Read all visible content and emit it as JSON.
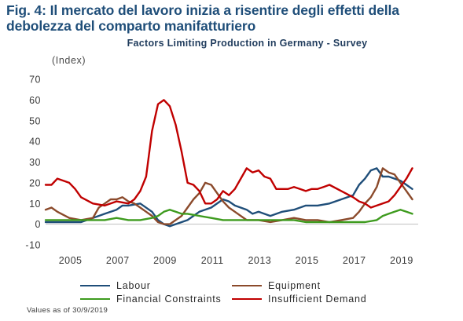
{
  "figure": {
    "title": "Fig. 4: Il mercato del lavoro inizia a risentire degli effetti della debolezza del comparto manifatturiero",
    "footnote": "Values as of 30/9/2019"
  },
  "chart_data": {
    "type": "line",
    "title": "Factors Limiting Production in Germany - Survey",
    "ylabel": "(Index)",
    "xlabel": "",
    "ylim": [
      -10,
      70
    ],
    "yticks": [
      -10,
      0,
      10,
      20,
      30,
      40,
      50,
      60,
      70
    ],
    "xlim": [
      2004.0,
      2019.75
    ],
    "xticks": [
      2005,
      2007,
      2009,
      2011,
      2013,
      2015,
      2017,
      2019
    ],
    "xtick_labels": [
      "2005",
      "2007",
      "2009",
      "2011",
      "2013",
      "2015",
      "2017",
      "2019"
    ],
    "grid": false,
    "legend_position": "bottom",
    "series": [
      {
        "name": "Labour",
        "color": "#1f4e79",
        "points": [
          [
            2004.0,
            1
          ],
          [
            2004.5,
            1
          ],
          [
            2005.0,
            1
          ],
          [
            2005.5,
            1
          ],
          [
            2006.0,
            3
          ],
          [
            2006.5,
            5
          ],
          [
            2007.0,
            7
          ],
          [
            2007.25,
            9
          ],
          [
            2007.5,
            9
          ],
          [
            2008.0,
            10
          ],
          [
            2008.5,
            6
          ],
          [
            2008.75,
            2
          ],
          [
            2009.0,
            0
          ],
          [
            2009.25,
            -1
          ],
          [
            2009.5,
            0
          ],
          [
            2010.0,
            2
          ],
          [
            2010.5,
            6
          ],
          [
            2011.0,
            8
          ],
          [
            2011.5,
            12
          ],
          [
            2011.75,
            11
          ],
          [
            2012.0,
            9
          ],
          [
            2012.5,
            7
          ],
          [
            2012.75,
            5
          ],
          [
            2013.0,
            6
          ],
          [
            2013.5,
            4
          ],
          [
            2014.0,
            6
          ],
          [
            2014.5,
            7
          ],
          [
            2015.0,
            9
          ],
          [
            2015.5,
            9
          ],
          [
            2016.0,
            10
          ],
          [
            2016.5,
            12
          ],
          [
            2017.0,
            14
          ],
          [
            2017.25,
            19
          ],
          [
            2017.5,
            22
          ],
          [
            2017.75,
            26
          ],
          [
            2018.0,
            27
          ],
          [
            2018.25,
            23
          ],
          [
            2018.5,
            23
          ],
          [
            2018.75,
            22
          ],
          [
            2019.0,
            21
          ],
          [
            2019.25,
            19
          ],
          [
            2019.5,
            17
          ]
        ]
      },
      {
        "name": "Equipment",
        "color": "#8b4a2b",
        "points": [
          [
            2004.0,
            7
          ],
          [
            2004.25,
            8
          ],
          [
            2004.5,
            6
          ],
          [
            2005.0,
            3
          ],
          [
            2005.5,
            2
          ],
          [
            2006.0,
            3
          ],
          [
            2006.25,
            8
          ],
          [
            2006.5,
            10
          ],
          [
            2006.75,
            12
          ],
          [
            2007.0,
            12
          ],
          [
            2007.25,
            13
          ],
          [
            2007.5,
            11
          ],
          [
            2007.75,
            10
          ],
          [
            2008.0,
            8
          ],
          [
            2008.25,
            6
          ],
          [
            2008.5,
            4
          ],
          [
            2008.75,
            1
          ],
          [
            2009.0,
            0
          ],
          [
            2009.25,
            0
          ],
          [
            2009.5,
            2
          ],
          [
            2009.75,
            4
          ],
          [
            2010.0,
            8
          ],
          [
            2010.25,
            12
          ],
          [
            2010.5,
            15
          ],
          [
            2010.75,
            20
          ],
          [
            2011.0,
            19
          ],
          [
            2011.25,
            15
          ],
          [
            2011.5,
            11
          ],
          [
            2011.75,
            8
          ],
          [
            2012.0,
            6
          ],
          [
            2012.5,
            2
          ],
          [
            2013.0,
            2
          ],
          [
            2013.5,
            1
          ],
          [
            2014.0,
            2
          ],
          [
            2014.5,
            3
          ],
          [
            2015.0,
            2
          ],
          [
            2015.5,
            2
          ],
          [
            2016.0,
            1
          ],
          [
            2016.5,
            2
          ],
          [
            2017.0,
            3
          ],
          [
            2017.25,
            6
          ],
          [
            2017.5,
            10
          ],
          [
            2017.75,
            13
          ],
          [
            2018.0,
            18
          ],
          [
            2018.25,
            27
          ],
          [
            2018.5,
            25
          ],
          [
            2018.75,
            24
          ],
          [
            2019.0,
            20
          ],
          [
            2019.25,
            16
          ],
          [
            2019.5,
            12
          ]
        ]
      },
      {
        "name": "Financial Constraints",
        "color": "#3e9b1e",
        "points": [
          [
            2004.0,
            2
          ],
          [
            2004.5,
            2
          ],
          [
            2005.0,
            2
          ],
          [
            2005.5,
            2
          ],
          [
            2006.0,
            2
          ],
          [
            2006.5,
            2
          ],
          [
            2007.0,
            3
          ],
          [
            2007.5,
            2
          ],
          [
            2008.0,
            2
          ],
          [
            2008.5,
            3
          ],
          [
            2008.75,
            4
          ],
          [
            2009.0,
            6
          ],
          [
            2009.25,
            7
          ],
          [
            2009.5,
            6
          ],
          [
            2009.75,
            5
          ],
          [
            2010.0,
            5
          ],
          [
            2010.5,
            4
          ],
          [
            2011.0,
            3
          ],
          [
            2011.5,
            2
          ],
          [
            2012.0,
            2
          ],
          [
            2012.5,
            2
          ],
          [
            2013.0,
            2
          ],
          [
            2013.5,
            2
          ],
          [
            2014.0,
            2
          ],
          [
            2014.5,
            2
          ],
          [
            2015.0,
            1
          ],
          [
            2015.5,
            1
          ],
          [
            2016.0,
            1
          ],
          [
            2016.5,
            1
          ],
          [
            2017.0,
            1
          ],
          [
            2017.5,
            1
          ],
          [
            2018.0,
            2
          ],
          [
            2018.25,
            4
          ],
          [
            2018.5,
            5
          ],
          [
            2018.75,
            6
          ],
          [
            2019.0,
            7
          ],
          [
            2019.25,
            6
          ],
          [
            2019.5,
            5
          ]
        ]
      },
      {
        "name": "Insufficient Demand",
        "color": "#c00000",
        "points": [
          [
            2004.0,
            19
          ],
          [
            2004.25,
            19
          ],
          [
            2004.5,
            22
          ],
          [
            2004.75,
            21
          ],
          [
            2005.0,
            20
          ],
          [
            2005.25,
            17
          ],
          [
            2005.5,
            13
          ],
          [
            2006.0,
            10
          ],
          [
            2006.5,
            9
          ],
          [
            2007.0,
            11
          ],
          [
            2007.5,
            10
          ],
          [
            2007.75,
            12
          ],
          [
            2008.0,
            16
          ],
          [
            2008.25,
            23
          ],
          [
            2008.5,
            45
          ],
          [
            2008.75,
            58
          ],
          [
            2009.0,
            60
          ],
          [
            2009.25,
            57
          ],
          [
            2009.5,
            48
          ],
          [
            2009.75,
            35
          ],
          [
            2010.0,
            20
          ],
          [
            2010.25,
            19
          ],
          [
            2010.5,
            16
          ],
          [
            2010.75,
            10
          ],
          [
            2011.0,
            10
          ],
          [
            2011.25,
            12
          ],
          [
            2011.5,
            16
          ],
          [
            2011.75,
            14
          ],
          [
            2012.0,
            17
          ],
          [
            2012.25,
            22
          ],
          [
            2012.5,
            27
          ],
          [
            2012.75,
            25
          ],
          [
            2013.0,
            26
          ],
          [
            2013.25,
            23
          ],
          [
            2013.5,
            22
          ],
          [
            2013.75,
            17
          ],
          [
            2014.0,
            17
          ],
          [
            2014.25,
            17
          ],
          [
            2014.5,
            18
          ],
          [
            2014.75,
            17
          ],
          [
            2015.0,
            16
          ],
          [
            2015.25,
            17
          ],
          [
            2015.5,
            17
          ],
          [
            2015.75,
            18
          ],
          [
            2016.0,
            19
          ],
          [
            2016.5,
            16
          ],
          [
            2017.0,
            13
          ],
          [
            2017.25,
            11
          ],
          [
            2017.5,
            10
          ],
          [
            2017.75,
            8
          ],
          [
            2018.0,
            9
          ],
          [
            2018.5,
            11
          ],
          [
            2018.75,
            14
          ],
          [
            2019.0,
            18
          ],
          [
            2019.25,
            22
          ],
          [
            2019.5,
            27
          ]
        ]
      }
    ]
  }
}
